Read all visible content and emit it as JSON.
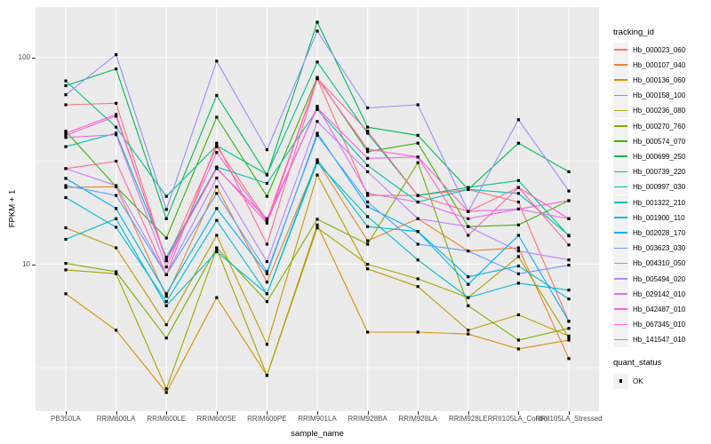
{
  "figure": {
    "background": "#FFFFFF",
    "panel_background": "#EBEBEB",
    "grid_color": "#FFFFFF",
    "tick_label_color": "#4D4D4D",
    "marker_color": "#000000"
  },
  "chart_data": {
    "type": "line",
    "title": "",
    "xlabel": "sample_name",
    "ylabel": "FPKM + 1",
    "y_scale": "log10",
    "ylim": [
      1.95,
      175
    ],
    "y_ticks": [
      {
        "value": 10,
        "label": "10"
      },
      {
        "value": 100,
        "label": "100"
      }
    ],
    "y_minor": [
      3.1623,
      31.623
    ],
    "grid": true,
    "legend_position": "right",
    "legend_title": "tracking_id",
    "marker": "filled-square",
    "categories": [
      "PB350LA",
      "RRIM600LA",
      "RRIM600LE",
      "RRIM600SE",
      "RRIM600PE",
      "RRIM901LA",
      "RRIM928BA",
      "RRIM928LA",
      "RRIM928LE",
      "RRII105LA_Control",
      "RRII105LA_Stressed"
    ],
    "series": [
      {
        "name": "Hb_000023_060",
        "color": "#F8766D",
        "values": [
          59,
          60,
          10.4,
          37,
          16.3,
          79,
          21.5,
          21.5,
          23,
          20,
          5.3
        ]
      },
      {
        "name": "Hb_000107_040",
        "color": "#EA8331",
        "values": [
          23.5,
          23.7,
          7.0,
          23.7,
          8.2,
          31.5,
          13,
          16.6,
          11.6,
          12,
          3.5
        ]
      },
      {
        "name": "Hb_000136_060",
        "color": "#D89000",
        "values": [
          7.2,
          4.8,
          2.4,
          6.9,
          2.9,
          15.5,
          4.7,
          4.7,
          4.6,
          3.9,
          4.3
        ]
      },
      {
        "name": "Hb_000158_100",
        "color": "#C09B00",
        "values": [
          15,
          12,
          5.1,
          13.8,
          4.1,
          27,
          9.5,
          7.8,
          4.8,
          5.7,
          4.5
        ]
      },
      {
        "name": "Hb_000236_080",
        "color": "#A3A500",
        "values": [
          9.4,
          9,
          2.5,
          11.9,
          2.9,
          15,
          10,
          8.5,
          6.9,
          10.9,
          4.4
        ]
      },
      {
        "name": "Hb_000270_760",
        "color": "#7CAE00",
        "values": [
          10.1,
          9.2,
          4.4,
          12,
          6.6,
          16.5,
          12.5,
          31,
          6.3,
          4.3,
          4.9
        ]
      },
      {
        "name": "Hb_000574_070",
        "color": "#39B600",
        "values": [
          44,
          23.7,
          13.4,
          51.4,
          21.3,
          80,
          35,
          38.5,
          15.2,
          15.5,
          20.3
        ]
      },
      {
        "name": "Hb_000699_250",
        "color": "#00BB4E",
        "values": [
          73,
          88,
          16.6,
          65.5,
          27,
          148,
          46,
          42,
          23,
          38.5,
          28
        ]
      },
      {
        "name": "Hb_000739_220",
        "color": "#00C087",
        "values": [
          77,
          46,
          21.3,
          37.5,
          27.2,
          95,
          43,
          21.5,
          23.5,
          25.4,
          13.7
        ]
      },
      {
        "name": "Hb_000997_030",
        "color": "#00C0B2",
        "values": [
          37,
          43,
          10.8,
          29.5,
          24.6,
          56,
          30,
          20,
          23,
          22,
          13.8
        ]
      },
      {
        "name": "Hb_001322_210",
        "color": "#00BFC4",
        "values": [
          13.2,
          16.6,
          6.3,
          11.5,
          7.2,
          31,
          17,
          10.5,
          6.9,
          8.1,
          7.5
        ]
      },
      {
        "name": "Hb_001900_110",
        "color": "#00BCD8",
        "values": [
          21,
          15.1,
          6.6,
          16.3,
          7.2,
          32,
          15.2,
          14.4,
          8.7,
          9.8,
          6.8
        ]
      },
      {
        "name": "Hb_002028_170",
        "color": "#00B0F6",
        "values": [
          26,
          18.6,
          7.2,
          18.6,
          9,
          43,
          19,
          14.4,
          8,
          13.8,
          5.3
        ]
      },
      {
        "name": "Hb_003623_030",
        "color": "#619CFF",
        "values": [
          24,
          21.5,
          8.9,
          22,
          9.2,
          42,
          20,
          12.5,
          11.6,
          9,
          9.9
        ]
      },
      {
        "name": "Hb_004310_050",
        "color": "#9590FF",
        "values": [
          66,
          103,
          18.4,
          96,
          35.8,
          134,
          57,
          59,
          18,
          50,
          22.6
        ]
      },
      {
        "name": "Hb_005494_020",
        "color": "#B983FF",
        "values": [
          29,
          24,
          8.9,
          26.1,
          10.3,
          49,
          28,
          16.6,
          15.2,
          11.6,
          10.5
        ]
      },
      {
        "name": "Hb_029142_010",
        "color": "#E76BF3",
        "values": [
          41,
          42.3,
          9.7,
          34.7,
          16,
          58,
          22,
          20,
          16.6,
          18.5,
          16.6
        ]
      },
      {
        "name": "Hb_042487_010",
        "color": "#F763E0",
        "values": [
          42,
          52,
          10.5,
          29,
          16.6,
          57,
          32.5,
          33,
          18,
          18.5,
          20.3
        ]
      },
      {
        "name": "Hb_067345_010",
        "color": "#FF61C9",
        "values": [
          43,
          53,
          10.4,
          29.3,
          15.8,
          79,
          36,
          33,
          13.8,
          23.5,
          16.6
        ]
      },
      {
        "name": "Hb_141547_010",
        "color": "#FF6A98",
        "values": [
          29,
          31.5,
          8.9,
          38.5,
          12.5,
          79,
          44,
          21.5,
          18,
          23.5,
          12.4
        ]
      }
    ],
    "legend2": {
      "title": "quant_status",
      "items": [
        {
          "label": "OK",
          "marker": "black-square"
        }
      ]
    }
  }
}
